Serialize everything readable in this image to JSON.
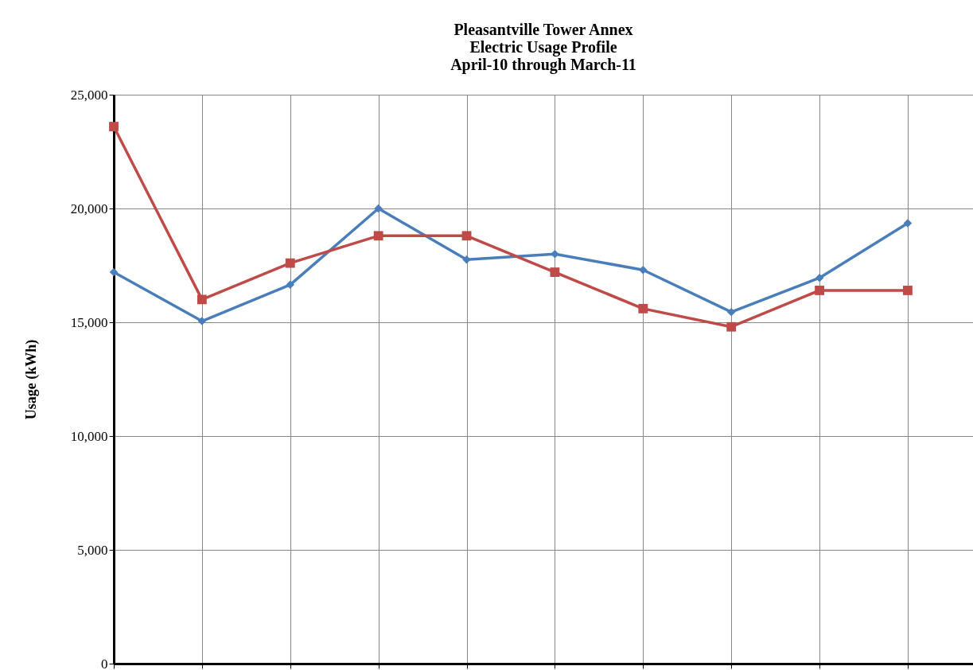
{
  "chart_data": {
    "type": "line",
    "title": [
      "Pleasantville Tower Annex",
      "Electric Usage Profile",
      "April-10 through March-11"
    ],
    "ylabel": "Usage (kWh)",
    "categories": [
      null,
      null,
      null,
      null,
      null,
      null,
      null,
      null,
      null,
      null
    ],
    "series": [
      {
        "color": "#4a7ebb",
        "marker": "diamond",
        "values": [
          17200,
          15050,
          16650,
          20000,
          17750,
          18000,
          17300,
          15450,
          16950,
          19350
        ]
      },
      {
        "color": "#be4b48",
        "marker": "square",
        "values": [
          23600,
          16000,
          17600,
          18800,
          18800,
          17200,
          15600,
          14800,
          16400,
          16400
        ]
      }
    ],
    "ylim": [
      0,
      25000
    ],
    "yticks": [
      0,
      {
        "value": 5000,
        "label": "5,000"
      },
      {
        "value": 10000,
        "label": "10,000"
      },
      {
        "value": 15000,
        "label": "15,000"
      },
      {
        "value": 20000,
        "label": "20,000"
      },
      {
        "value": 25000,
        "label": "25,000"
      }
    ],
    "grid": true,
    "tick_labels": "y",
    "line_style": "solid"
  }
}
